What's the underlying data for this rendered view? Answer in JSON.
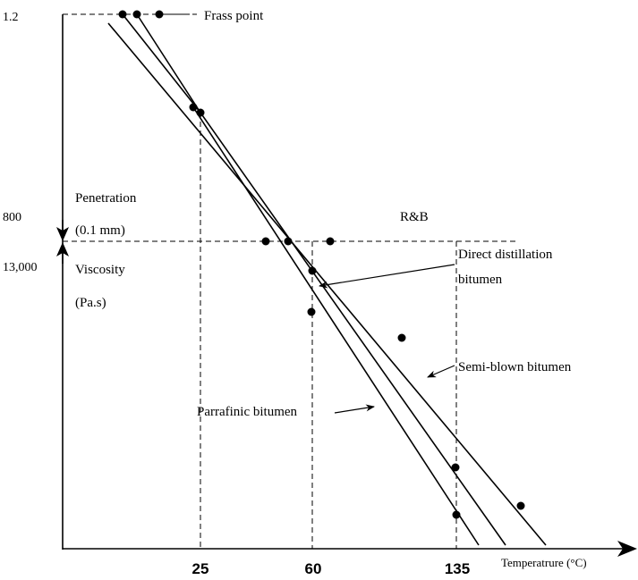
{
  "colors": {
    "ink": "#000000",
    "background": "#ffffff"
  },
  "left_axis": {
    "top_value": "1.2",
    "penetration_value": "800",
    "penetration_label": "Penetration",
    "penetration_unit": "(0.1 mm)",
    "viscosity_value": "13,000",
    "viscosity_label": "Viscosity",
    "viscosity_unit": "(Pa.s)"
  },
  "x_axis": {
    "label": "Temperatrure (°C)",
    "ticks": [
      "25",
      "60",
      "135"
    ]
  },
  "labels": {
    "frass_point": "Frass point",
    "ring_and_ball": "R&B",
    "direct_distillation_line1": "Direct distillation",
    "direct_distillation_line2": "bitumen",
    "semi_blown": "Semi-blown bitumen",
    "paraffinic": "Parrafinic bitumen"
  }
}
